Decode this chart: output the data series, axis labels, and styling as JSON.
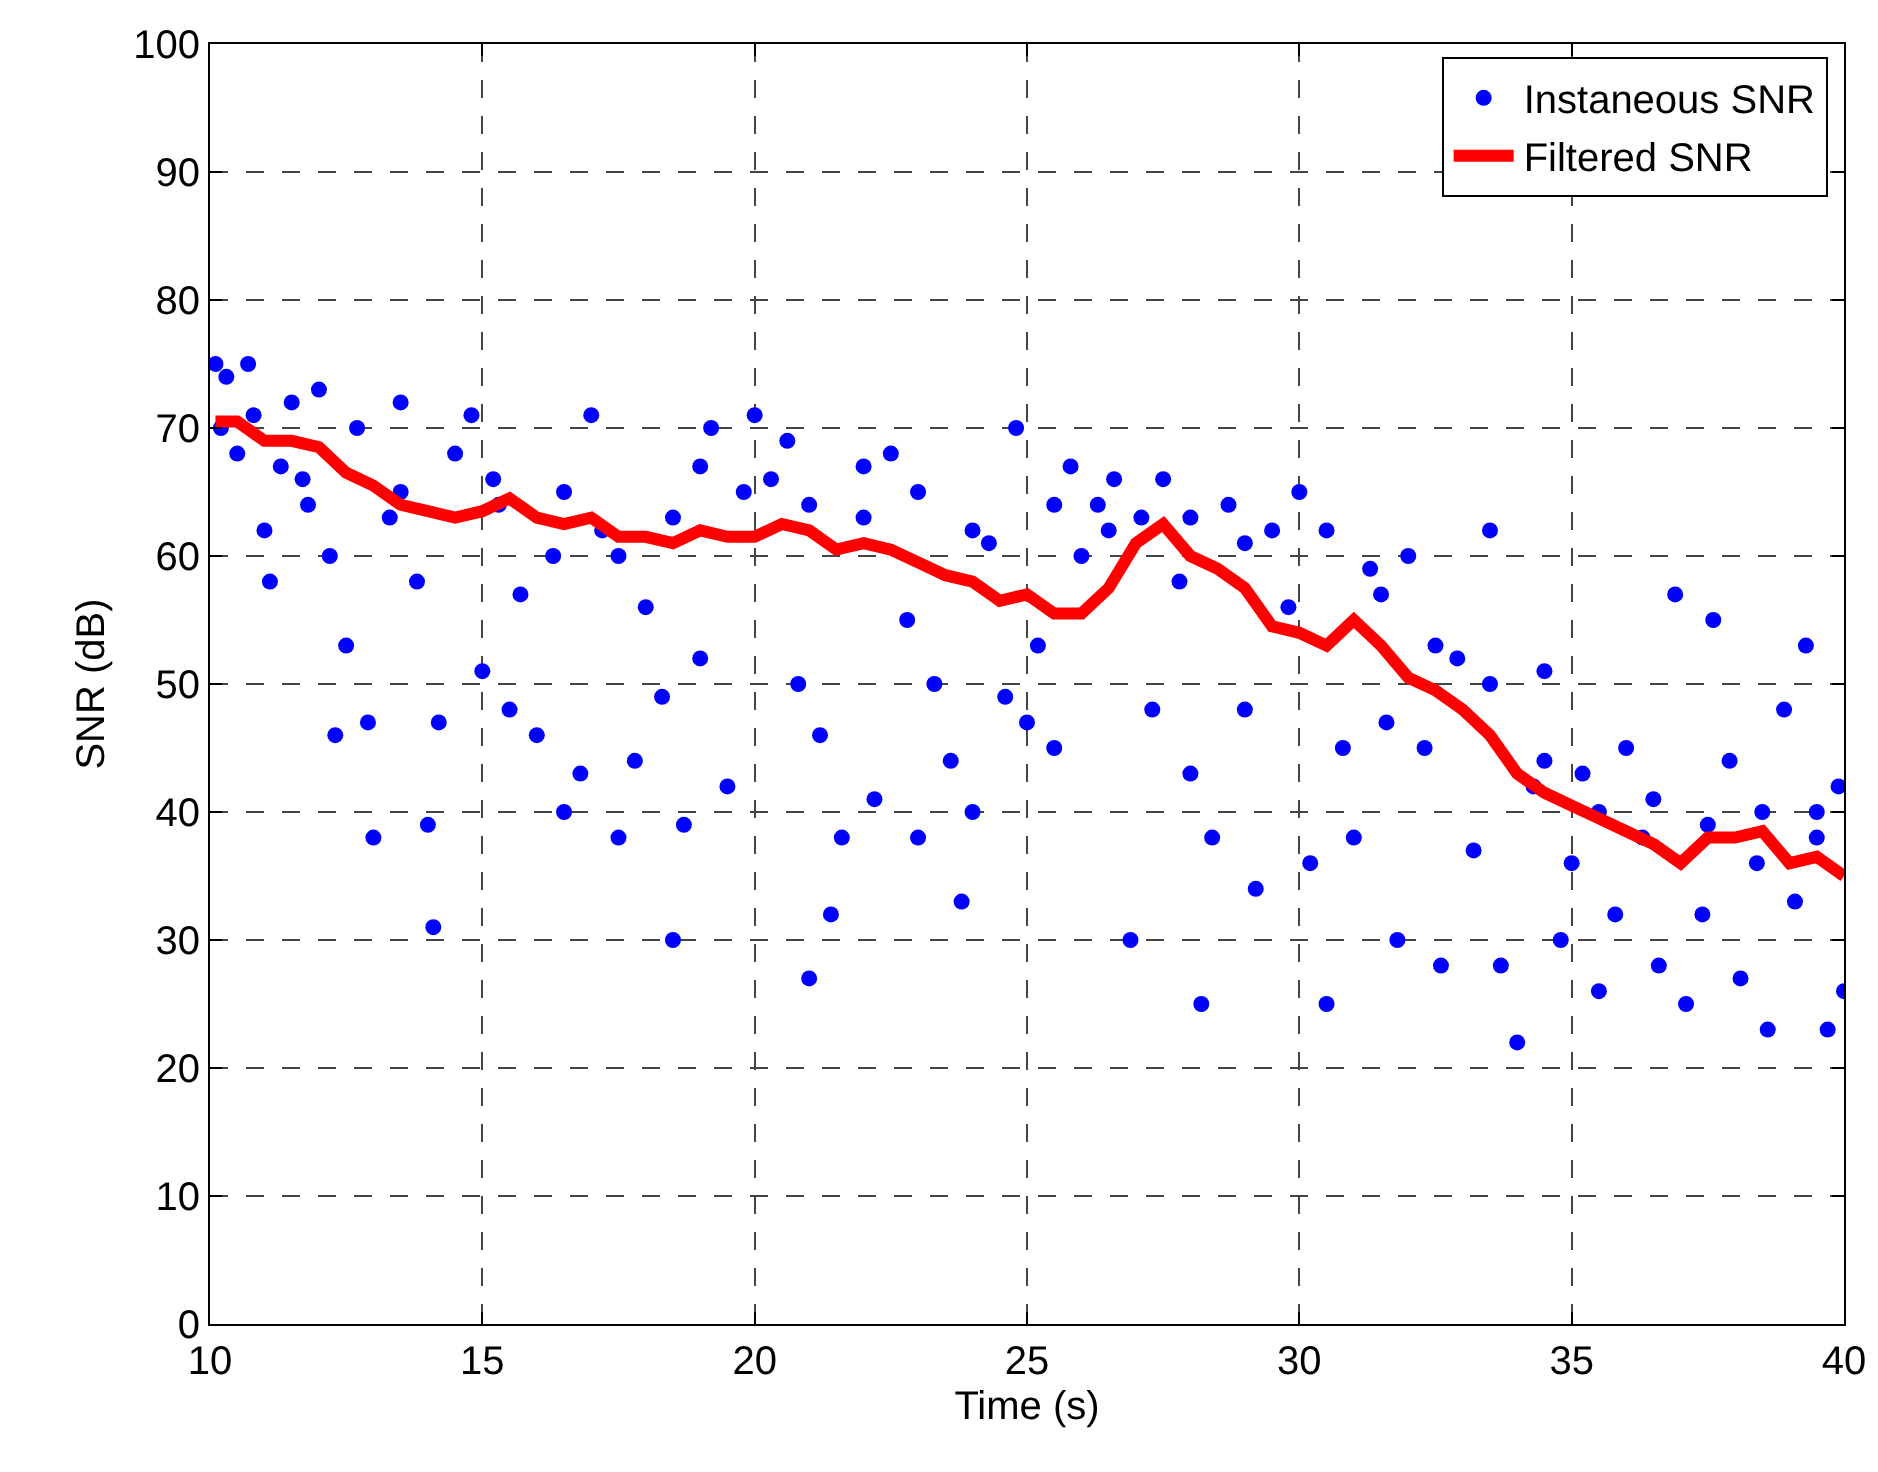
{
  "chart_data": {
    "type": "scatter",
    "xlabel": "Time (s)",
    "ylabel": "SNR (dB)",
    "xlim": [
      10,
      40
    ],
    "ylim": [
      0,
      100
    ],
    "xticks": [
      10,
      15,
      20,
      25,
      30,
      35,
      40
    ],
    "yticks": [
      0,
      10,
      20,
      30,
      40,
      50,
      60,
      70,
      80,
      90,
      100
    ],
    "grid": true,
    "legend": "top right",
    "series": [
      {
        "name": "Instaneous SNR",
        "type": "scatter",
        "marker": "circle",
        "color": "#0000ff",
        "x": [
          10.1,
          10.2,
          10.3,
          10.5,
          10.7,
          10.8,
          11,
          11.1,
          11.3,
          11.5,
          11.7,
          12,
          12.2,
          12.3,
          12.5,
          12.7,
          12.9,
          13,
          13.3,
          13.5,
          13.8,
          14,
          14.1,
          14.2,
          14.5,
          14.8,
          15,
          15.3,
          15.5,
          15.7,
          16,
          16.3,
          16.5,
          16.8,
          17,
          17.2,
          17.5,
          17.8,
          18,
          18.3,
          18.5,
          18.7,
          19,
          19.2,
          19.5,
          19.8,
          20,
          20.3,
          20.6,
          20.8,
          21,
          21.2,
          21.4,
          21.6,
          22,
          22.2,
          22.5,
          22.8,
          23,
          23.3,
          23.6,
          23.8,
          24,
          24.3,
          24.6,
          24.8,
          25,
          25.2,
          25.5,
          25.8,
          26,
          26.3,
          26.6,
          26.9,
          27.1,
          27.3,
          27.5,
          27.8,
          28,
          28.2,
          28.4,
          28.7,
          29,
          29.2,
          29.5,
          29.8,
          30,
          30.2,
          30.5,
          30.8,
          31,
          31.3,
          31.6,
          31.8,
          32,
          32.3,
          32.6,
          32.9,
          33.2,
          33.5,
          33.7,
          34,
          34.3,
          34.5,
          34.8,
          35,
          35.2,
          35.5,
          35.8,
          36,
          36.3,
          36.6,
          36.9,
          37.1,
          37.4,
          37.6,
          37.9,
          38.1,
          38.4,
          38.6,
          38.9,
          39.1,
          39.3,
          39.5,
          39.7,
          39.9,
          40,
          11.8,
          13.5,
          15.2,
          16.5,
          17.5,
          18.5,
          19,
          21,
          22,
          23,
          24,
          25.5,
          26.5,
          28,
          29,
          30.5,
          31.5,
          32.5,
          33.5,
          34.5,
          35.5,
          36.5,
          37.5,
          38.5,
          39.5
        ],
        "values": [
          75,
          70,
          74,
          68,
          75,
          71,
          62,
          58,
          67,
          72,
          66,
          73,
          60,
          46,
          53,
          70,
          47,
          38,
          63,
          72,
          58,
          39,
          31,
          47,
          68,
          71,
          51,
          64,
          48,
          57,
          46,
          60,
          40,
          43,
          71,
          62,
          38,
          44,
          56,
          49,
          30,
          39,
          52,
          70,
          42,
          65,
          71,
          66,
          69,
          50,
          27,
          46,
          32,
          38,
          63,
          41,
          68,
          55,
          38,
          50,
          44,
          33,
          40,
          61,
          49,
          70,
          47,
          53,
          45,
          67,
          60,
          64,
          66,
          30,
          63,
          48,
          66,
          58,
          43,
          25,
          38,
          64,
          48,
          34,
          62,
          56,
          65,
          36,
          25,
          45,
          38,
          59,
          47,
          30,
          60,
          45,
          28,
          52,
          37,
          62,
          28,
          22,
          42,
          51,
          30,
          36,
          43,
          26,
          32,
          45,
          38,
          28,
          57,
          25,
          32,
          55,
          44,
          27,
          36,
          23,
          48,
          33,
          53,
          40,
          23,
          42,
          26,
          64,
          65,
          66,
          65,
          60,
          63,
          67,
          64,
          67,
          65,
          62,
          64,
          62,
          63,
          61,
          62,
          57,
          53,
          50,
          44,
          40,
          41,
          39,
          40,
          38
        ]
      },
      {
        "name": "Filtered SNR",
        "type": "line",
        "line_style": "solid",
        "color": "#ff0000",
        "x": [
          10.1,
          10.5,
          11,
          11.5,
          12,
          12.5,
          13,
          13.5,
          14,
          14.5,
          15,
          15.5,
          16,
          16.5,
          17,
          17.5,
          18,
          18.5,
          19,
          19.5,
          20,
          20.5,
          21,
          21.5,
          22,
          22.5,
          23,
          23.5,
          24,
          24.5,
          25,
          25.5,
          26,
          26.5,
          27,
          27.5,
          28,
          28.5,
          29,
          29.5,
          30,
          30.5,
          31,
          31.5,
          32,
          32.5,
          33,
          33.5,
          34,
          34.5,
          35,
          35.5,
          36,
          36.5,
          37,
          37.5,
          38,
          38.5,
          39,
          39.5,
          40
        ],
        "values": [
          70.5,
          70.5,
          69,
          69,
          68.5,
          66.5,
          65.5,
          64,
          63.5,
          63,
          63.5,
          64.5,
          63,
          62.5,
          63,
          61.5,
          61.5,
          61,
          62,
          61.5,
          61.5,
          62.5,
          62,
          60.5,
          61,
          60.5,
          59.5,
          58.5,
          58,
          56.5,
          57,
          55.5,
          55.5,
          57.5,
          61,
          62.5,
          60,
          59,
          57.5,
          54.5,
          54,
          53,
          55,
          53,
          50.5,
          49.5,
          48,
          46,
          43,
          41.5,
          40.5,
          39.5,
          38.5,
          37.5,
          36,
          38,
          38,
          38.5,
          36,
          36.5,
          35
        ]
      }
    ]
  }
}
